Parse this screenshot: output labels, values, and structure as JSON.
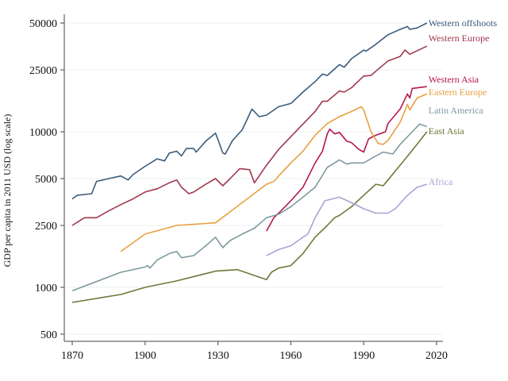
{
  "chart_data": {
    "type": "line",
    "title": "",
    "xlabel": "",
    "ylabel": "GDP per capita in 2011 USD (log scale)",
    "y_scale": "log",
    "xlim": [
      1870,
      2020
    ],
    "ylim": [
      500,
      50000
    ],
    "x_ticks": [
      1870,
      1900,
      1930,
      1960,
      1990,
      2020
    ],
    "y_ticks": [
      500,
      1000,
      2500,
      5000,
      10000,
      25000,
      50000
    ],
    "grid": "horizontal",
    "legend": "direct labels at right end of lines",
    "series": [
      {
        "name": "Western offshoots",
        "color": "#3b5b7a",
        "x": [
          1870,
          1872,
          1878,
          1880,
          1885,
          1890,
          1893,
          1895,
          1900,
          1905,
          1908,
          1910,
          1913,
          1915,
          1917,
          1920,
          1921,
          1925,
          1929,
          1930,
          1932,
          1933,
          1936,
          1940,
          1944,
          1947,
          1950,
          1955,
          1960,
          1965,
          1970,
          1973,
          1975,
          1980,
          1982,
          1985,
          1990,
          1991,
          1995,
          2000,
          2005,
          2008,
          2009,
          2012,
          2016
        ],
        "y": [
          3700,
          3900,
          4000,
          4800,
          5000,
          5200,
          4900,
          5300,
          6000,
          6700,
          6500,
          7300,
          7500,
          7000,
          7800,
          7800,
          7400,
          8700,
          9800,
          8900,
          7300,
          7200,
          8800,
          10300,
          14000,
          12500,
          12800,
          14500,
          15200,
          18000,
          21000,
          23500,
          23000,
          27000,
          26000,
          29500,
          33500,
          33000,
          36500,
          42000,
          45500,
          47500,
          45500,
          46500,
          50000
        ]
      },
      {
        "name": "Western Europe",
        "color": "#a0384f",
        "x": [
          1870,
          1875,
          1880,
          1885,
          1890,
          1895,
          1900,
          1905,
          1910,
          1913,
          1915,
          1918,
          1920,
          1925,
          1929,
          1932,
          1935,
          1939,
          1943,
          1945,
          1950,
          1955,
          1960,
          1965,
          1970,
          1973,
          1975,
          1980,
          1982,
          1985,
          1990,
          1993,
          1995,
          2000,
          2005,
          2007,
          2009,
          2016
        ],
        "y": [
          2500,
          2800,
          2800,
          3100,
          3400,
          3700,
          4100,
          4300,
          4700,
          4900,
          4400,
          4000,
          4100,
          4600,
          5000,
          4500,
          5000,
          5800,
          5700,
          4700,
          6100,
          7700,
          9300,
          11200,
          13500,
          15700,
          15700,
          18300,
          18000,
          19200,
          22800,
          23000,
          24500,
          28500,
          30500,
          33500,
          31500,
          35500
        ]
      },
      {
        "name": "Western Asia",
        "color": "#b5174a",
        "x": [
          1950,
          1953,
          1955,
          1960,
          1965,
          1970,
          1973,
          1975,
          1976,
          1978,
          1980,
          1983,
          1985,
          1988,
          1990,
          1992,
          1995,
          1999,
          2000,
          2005,
          2008,
          2009,
          2010,
          2016
        ],
        "y": [
          2300,
          2800,
          3000,
          3600,
          4400,
          6300,
          7500,
          9700,
          10400,
          9700,
          9900,
          8700,
          8500,
          7700,
          7400,
          9000,
          9500,
          10000,
          11300,
          14000,
          17500,
          16500,
          19000,
          19500
        ]
      },
      {
        "name": "Eastern Europe",
        "color": "#e8a040",
        "x": [
          1890,
          1900,
          1913,
          1929,
          1950,
          1953,
          1955,
          1960,
          1965,
          1970,
          1975,
          1980,
          1985,
          1989,
          1990,
          1993,
          1996,
          1998,
          2000,
          2005,
          2008,
          2009,
          2012,
          2016
        ],
        "y": [
          1700,
          2200,
          2500,
          2600,
          4600,
          4800,
          5200,
          6300,
          7500,
          9500,
          11300,
          12500,
          13500,
          14500,
          13800,
          10000,
          8400,
          8300,
          8800,
          11500,
          15000,
          13800,
          16500,
          17500
        ]
      },
      {
        "name": "Latin America",
        "color": "#7f9aa0",
        "x": [
          1870,
          1890,
          1900,
          1901,
          1902,
          1905,
          1910,
          1913,
          1915,
          1920,
          1925,
          1929,
          1932,
          1935,
          1940,
          1945,
          1950,
          1955,
          1960,
          1965,
          1970,
          1975,
          1980,
          1983,
          1985,
          1990,
          1995,
          1998,
          2002,
          2005,
          2010,
          2013,
          2016
        ],
        "y": [
          950,
          1250,
          1350,
          1380,
          1330,
          1500,
          1650,
          1700,
          1550,
          1600,
          1850,
          2100,
          1800,
          2000,
          2200,
          2400,
          2800,
          2950,
          3300,
          3800,
          4400,
          5900,
          6600,
          6200,
          6300,
          6300,
          7000,
          7400,
          7200,
          8300,
          10000,
          11200,
          10800
        ]
      },
      {
        "name": "East Asia",
        "color": "#6b7a3a",
        "x": [
          1870,
          1890,
          1900,
          1913,
          1929,
          1938,
          1950,
          1952,
          1955,
          1960,
          1965,
          1970,
          1975,
          1978,
          1980,
          1985,
          1990,
          1995,
          1998,
          2000,
          2005,
          2010,
          2016
        ],
        "y": [
          800,
          900,
          1000,
          1100,
          1270,
          1300,
          1120,
          1250,
          1330,
          1380,
          1650,
          2100,
          2500,
          2800,
          2900,
          3300,
          3900,
          4600,
          4500,
          4900,
          6100,
          7600,
          10000
        ]
      },
      {
        "name": "Africa",
        "color": "#a7a5d3",
        "x": [
          1950,
          1955,
          1960,
          1965,
          1967,
          1970,
          1974,
          1980,
          1985,
          1990,
          1995,
          2000,
          2003,
          2008,
          2012,
          2016
        ],
        "y": [
          1600,
          1750,
          1850,
          2100,
          2200,
          2800,
          3600,
          3800,
          3500,
          3200,
          3000,
          3000,
          3200,
          3900,
          4400,
          4600
        ]
      }
    ]
  }
}
